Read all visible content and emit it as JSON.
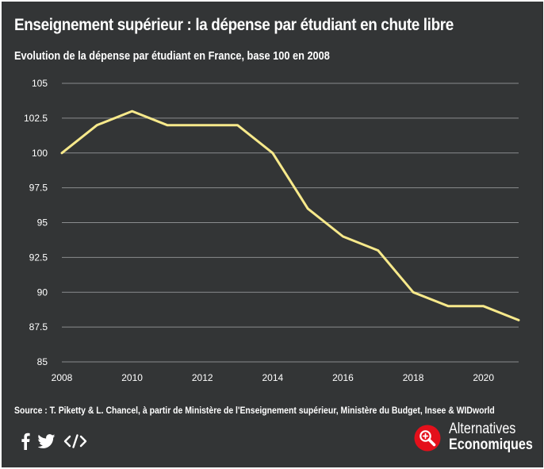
{
  "header": {
    "title": "Enseignement supérieur : la dépense par étudiant en chute libre",
    "subtitle": "Evolution de la dépense par étudiant en France, base 100 en 2008"
  },
  "chart_data": {
    "type": "line",
    "title": "Enseignement supérieur : la dépense par étudiant en chute libre",
    "subtitle": "Evolution de la dépense par étudiant en France, base 100 en 2008",
    "xlabel": "",
    "ylabel": "",
    "x": [
      2008,
      2009,
      2010,
      2011,
      2012,
      2013,
      2014,
      2015,
      2016,
      2017,
      2018,
      2019,
      2020,
      2021
    ],
    "series": [
      {
        "values": [
          100,
          102,
          103,
          102,
          102,
          102,
          100,
          96,
          94,
          93,
          90,
          89,
          89,
          88
        ],
        "color": "#f7e98b"
      }
    ],
    "xlim": [
      2008,
      2021
    ],
    "ylim": [
      85,
      105
    ],
    "x_ticks": [
      "2008",
      "2010",
      "2012",
      "2014",
      "2016",
      "2018",
      "2020"
    ],
    "y_ticks": [
      "85",
      "87.5",
      "90",
      "92.5",
      "95",
      "97.5",
      "100",
      "102.5",
      "105"
    ],
    "grid": "horizontal",
    "legend": "none"
  },
  "footer": {
    "source": "Source : T. Piketty & L. Chancel, à partir de Ministère de l'Enseignement supérieur, Ministère du Budget, Insee & WIDworld"
  },
  "share": {
    "facebook_icon": "facebook-icon",
    "twitter_icon": "twitter-icon",
    "embed_icon": "embed-code-icon"
  },
  "brand": {
    "name_line1": "Alternatives",
    "name_line2": "Economiques",
    "logo_icon": "magnifier-logo-icon",
    "logo_color": "#e4101b"
  },
  "colors": {
    "background": "#333536",
    "gridline": "#8a8c8e",
    "text": "#ffffff",
    "line": "#f7e98b"
  }
}
